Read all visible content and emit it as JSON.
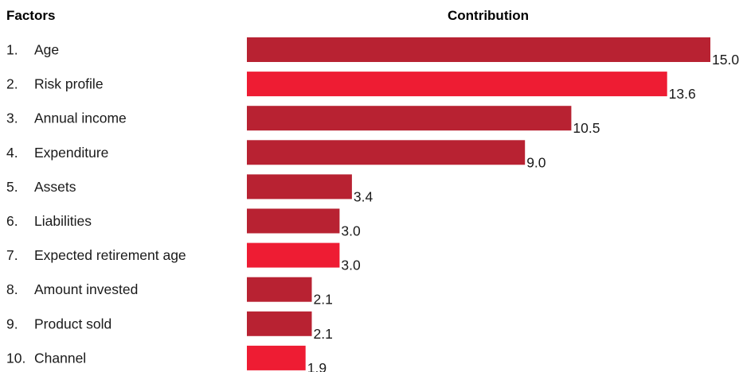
{
  "headers": {
    "factors": "Factors",
    "contribution": "Contribution"
  },
  "colors": {
    "dark_red": "#b82232",
    "bright_red": "#ee1c33",
    "text": "#1a1a1a"
  },
  "chart_data": {
    "type": "bar",
    "orientation": "horizontal",
    "title": "",
    "xlabel": "Contribution",
    "ylabel": "Factors",
    "xlim": [
      0,
      15
    ],
    "grid": false,
    "categories": [
      "Age",
      "Risk profile",
      "Annual income",
      "Expenditure",
      "Assets",
      "Liabilities",
      "Expected retirement age",
      "Amount invested",
      "Product sold",
      "Channel"
    ],
    "ranks": [
      "1.",
      "2.",
      "3.",
      "4.",
      "5.",
      "6.",
      "7.",
      "8.",
      "9.",
      "10."
    ],
    "values": [
      15.0,
      13.6,
      10.5,
      9.0,
      3.4,
      3.0,
      3.0,
      2.1,
      2.1,
      1.9
    ],
    "value_labels": [
      "15.0",
      "13.6",
      "10.5",
      "9.0",
      "3.4",
      "3.0",
      "3.0",
      "2.1",
      "2.1",
      "1.9"
    ],
    "bar_colors": [
      "#b82232",
      "#ee1c33",
      "#b82232",
      "#b82232",
      "#b82232",
      "#b82232",
      "#ee1c33",
      "#b82232",
      "#b82232",
      "#ee1c33"
    ]
  }
}
